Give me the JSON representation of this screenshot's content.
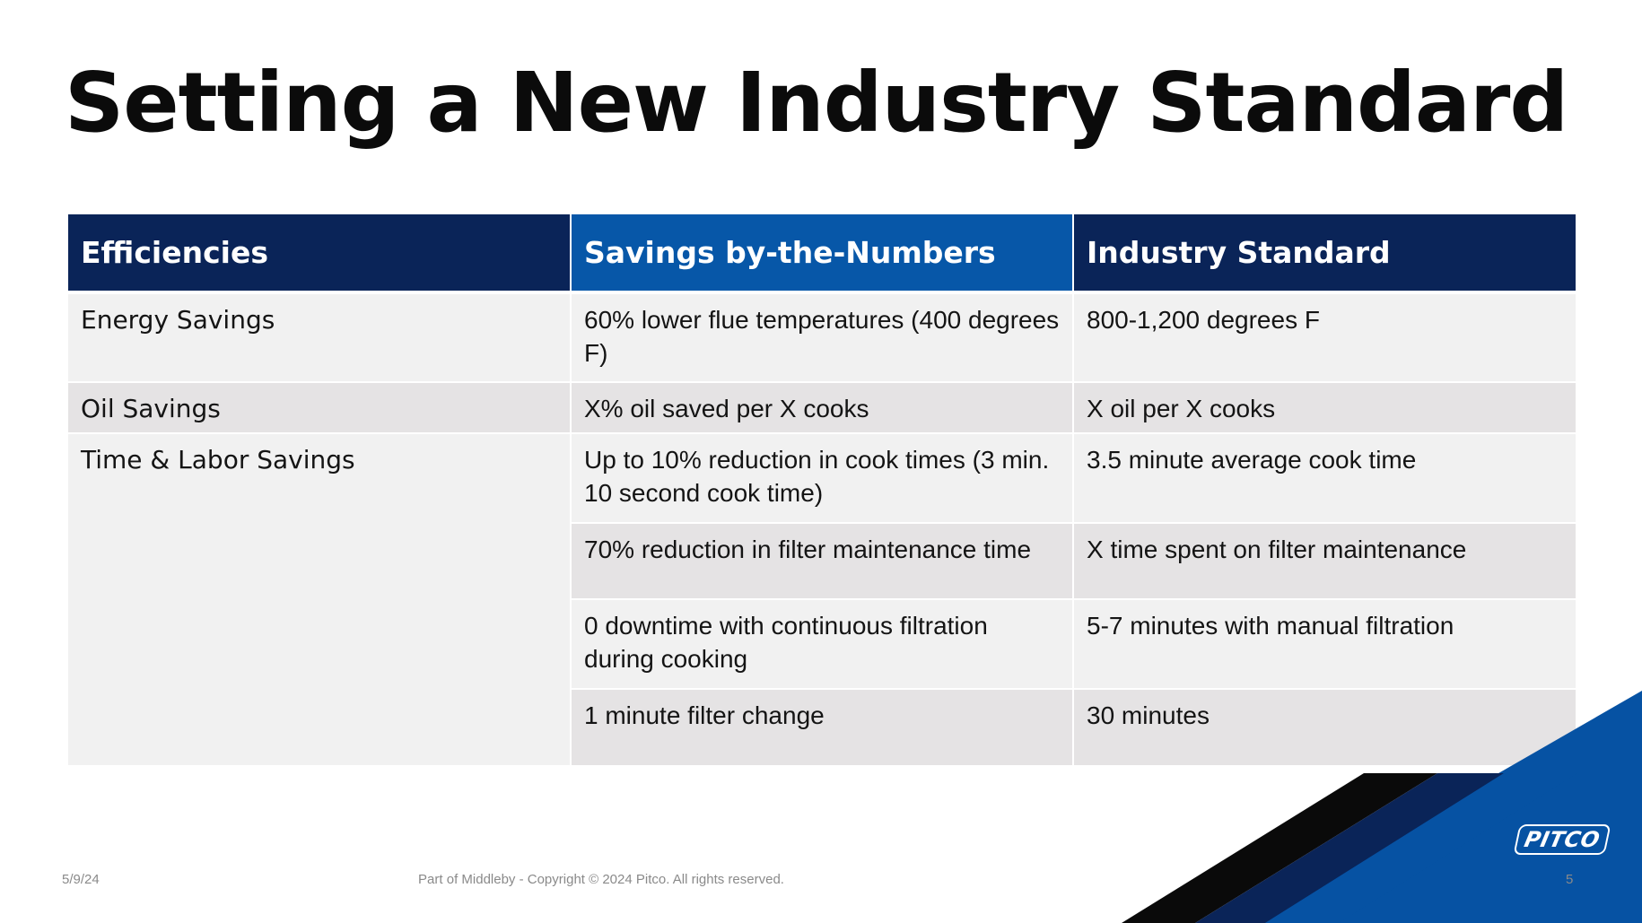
{
  "slide": {
    "title": "Setting a New Industry Standard"
  },
  "table": {
    "headers": [
      "Efficiencies",
      "Savings by-the-Numbers",
      "Industry Standard"
    ],
    "rows": [
      {
        "category": "Energy Savings",
        "savings": "60% lower flue temperatures (400 degrees F)",
        "standard": "800-1,200 degrees F"
      },
      {
        "category": "Oil Savings",
        "savings": "X% oil saved per X cooks",
        "standard": "X oil per X cooks"
      },
      {
        "category": "Time & Labor Savings",
        "savings": "Up to 10% reduction in cook times (3 min. 10 second cook time)",
        "standard": "3.5 minute average cook time"
      },
      {
        "category": "",
        "savings": "70% reduction in filter maintenance time",
        "standard": "X time spent on filter maintenance"
      },
      {
        "category": "",
        "savings": "0 downtime with continuous filtration during cooking",
        "standard": "5-7 minutes with manual filtration"
      },
      {
        "category": "",
        "savings": "1 minute filter change",
        "standard": "30 minutes"
      }
    ]
  },
  "footer": {
    "date": "5/9/24",
    "copyright": "Part of Middleby - Copyright © 2024 Pitco. All rights reserved.",
    "page_number": "5"
  },
  "brand": {
    "logo_text": "PITCO"
  },
  "colors": {
    "header_dark": "#0a2458",
    "header_mid": "#0757a8",
    "row_light": "#f1f1f1",
    "row_shade": "#e5e3e4",
    "accent_blue": "#0652a3",
    "accent_navy": "#0a2458"
  }
}
